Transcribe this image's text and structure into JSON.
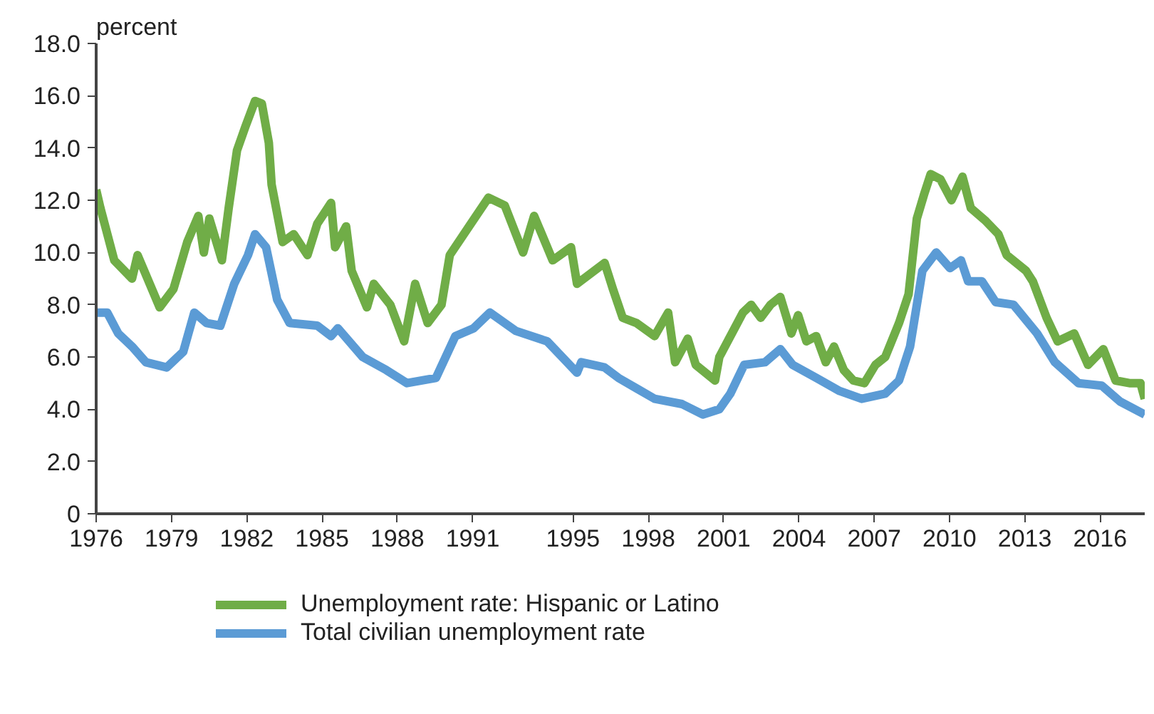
{
  "chart_data": {
    "type": "line",
    "ylabel": "percent",
    "xlim": [
      1976,
      2017.78
    ],
    "ylim": [
      0,
      18
    ],
    "xticks": [
      1976,
      1979,
      1982,
      1985,
      1988,
      1991,
      1995,
      1998,
      2001,
      2004,
      2007,
      2010,
      2013,
      2016
    ],
    "yticks": [
      0,
      {
        "value": 2,
        "label": "2.0"
      },
      {
        "value": 4,
        "label": "4.0"
      },
      {
        "value": 6,
        "label": "6.0"
      },
      {
        "value": 8,
        "label": "8.0"
      },
      {
        "value": 10,
        "label": "10.0"
      },
      {
        "value": 12,
        "label": "12.0"
      },
      {
        "value": 14,
        "label": "14.0"
      },
      {
        "value": 16,
        "label": "16.0"
      },
      {
        "value": 18,
        "label": "18.0"
      }
    ],
    "grid": false,
    "legend": "bottom",
    "marker": "none",
    "line_style": "solid",
    "series": [
      {
        "name": "Unemployment rate: Hispanic or Latino",
        "color": "#70ad47",
        "x": [
          1976.0,
          1976.17,
          1976.72,
          1977.43,
          1977.65,
          1978.53,
          1979.08,
          1979.63,
          1980.07,
          1980.29,
          1980.51,
          1981.01,
          1981.28,
          1981.61,
          1981.94,
          1982.33,
          1982.6,
          1982.88,
          1982.99,
          1983.43,
          1983.87,
          1984.42,
          1984.81,
          1985.36,
          1985.52,
          1985.96,
          1986.18,
          1986.79,
          1987.06,
          1987.72,
          1988.27,
          1988.71,
          1989.21,
          1989.76,
          1990.09,
          1990.86,
          1991.63,
          1992.28,
          1993.01,
          1993.45,
          1994.19,
          1994.92,
          1995.16,
          1996.26,
          1996.59,
          1996.98,
          1997.53,
          1998.25,
          1998.79,
          1999.07,
          1999.57,
          1999.89,
          2000.66,
          2000.83,
          2001.77,
          2002.1,
          2002.48,
          2002.87,
          2003.26,
          2003.7,
          2003.97,
          2004.3,
          2004.69,
          2005.07,
          2005.4,
          2005.79,
          2006.17,
          2006.61,
          2007.05,
          2007.44,
          2007.99,
          2008.37,
          2008.7,
          2008.98,
          2009.25,
          2009.64,
          2010.08,
          2010.52,
          2010.85,
          2011.45,
          2011.95,
          2012.28,
          2013.05,
          2013.32,
          2013.87,
          2014.31,
          2014.97,
          2015.52,
          2016.13,
          2016.62,
          2017.17,
          2017.61,
          2017.78
        ],
        "values": [
          12.4,
          11.7,
          9.7,
          9.0,
          9.9,
          7.9,
          8.6,
          10.4,
          11.4,
          10.0,
          11.3,
          9.7,
          11.7,
          13.9,
          14.8,
          15.8,
          15.7,
          14.2,
          12.6,
          10.4,
          10.7,
          9.9,
          11.1,
          11.9,
          10.2,
          11.0,
          9.3,
          7.9,
          8.8,
          8.0,
          6.6,
          8.8,
          7.3,
          8.0,
          9.9,
          11.0,
          12.1,
          11.8,
          10.0,
          11.4,
          9.7,
          10.2,
          8.8,
          9.6,
          8.6,
          7.5,
          7.3,
          6.8,
          7.7,
          5.8,
          6.7,
          5.7,
          5.1,
          6.0,
          7.7,
          8.0,
          7.5,
          8.0,
          8.3,
          6.9,
          7.6,
          6.6,
          6.8,
          5.8,
          6.4,
          5.5,
          5.1,
          5.0,
          5.7,
          6.0,
          7.3,
          8.4,
          11.3,
          12.2,
          13.0,
          12.8,
          12.0,
          12.9,
          11.7,
          11.2,
          10.7,
          9.9,
          9.3,
          8.9,
          7.5,
          6.6,
          6.9,
          5.7,
          6.3,
          5.1,
          5.0,
          5.0,
          4.4
        ]
      },
      {
        "name": "Total civilian unemployment rate",
        "color": "#5b9bd5",
        "x": [
          1976.0,
          1976.44,
          1976.88,
          1977.43,
          1977.98,
          1978.81,
          1979.47,
          1979.91,
          1980.4,
          1980.95,
          1981.5,
          1982.05,
          1982.33,
          1982.77,
          1983.21,
          1983.71,
          1984.81,
          1985.36,
          1985.63,
          1986.62,
          1987.56,
          1988.38,
          1989.54,
          1990.31,
          1991.04,
          1991.69,
          1992.72,
          1993.97,
          1995.16,
          1995.33,
          1996.26,
          1996.81,
          1997.53,
          1998.25,
          1999.34,
          2000.17,
          2000.83,
          2001.27,
          2001.82,
          2002.65,
          2003.26,
          2003.75,
          2004.69,
          2005.62,
          2006.5,
          2007.44,
          2007.99,
          2008.43,
          2008.92,
          2009.47,
          2010.02,
          2010.46,
          2010.74,
          2011.29,
          2011.84,
          2012.55,
          2013.49,
          2014.2,
          2015.14,
          2016.07,
          2016.79,
          2017.78
        ],
        "values": [
          7.7,
          7.7,
          6.9,
          6.4,
          5.8,
          5.6,
          6.2,
          7.7,
          7.3,
          7.2,
          8.8,
          9.9,
          10.7,
          10.2,
          8.2,
          7.3,
          7.2,
          6.8,
          7.1,
          6.0,
          5.5,
          5.0,
          5.2,
          6.8,
          7.1,
          7.7,
          7.0,
          6.6,
          5.4,
          5.8,
          5.6,
          5.2,
          4.8,
          4.4,
          4.2,
          3.8,
          4.0,
          4.6,
          5.7,
          5.8,
          6.3,
          5.7,
          5.2,
          4.7,
          4.4,
          4.6,
          5.1,
          6.4,
          9.3,
          10.0,
          9.4,
          9.7,
          8.9,
          8.9,
          8.1,
          8.0,
          6.9,
          5.8,
          5.0,
          4.9,
          4.3,
          3.8
        ]
      }
    ]
  }
}
